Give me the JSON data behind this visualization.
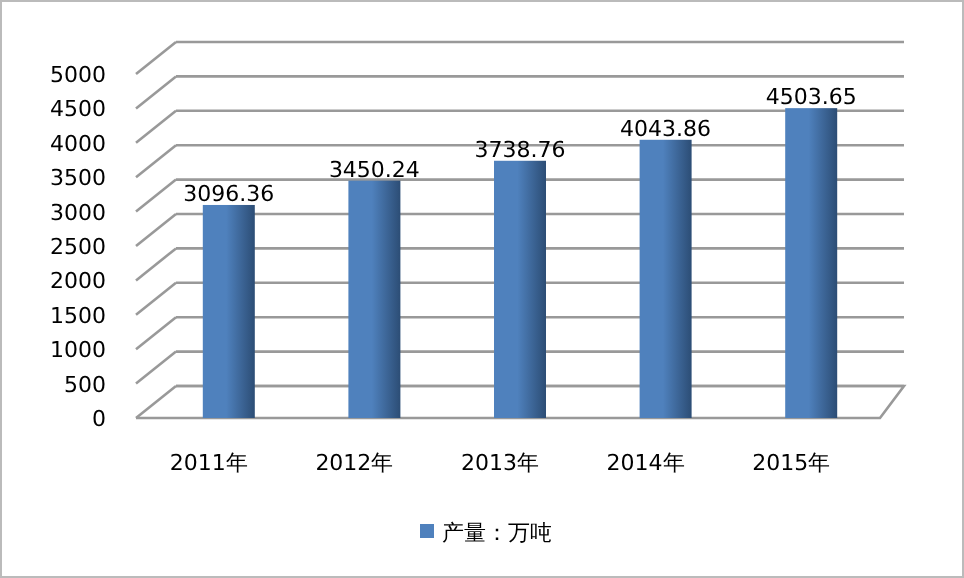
{
  "chart_data": {
    "type": "bar",
    "categories": [
      "2011年",
      "2012年",
      "2013年",
      "2014年",
      "2015年"
    ],
    "series": [
      {
        "name": "产量：万吨",
        "color": "#4f81bd",
        "values": [
          3096.36,
          3450.24,
          3738.76,
          4043.86,
          4503.65
        ]
      }
    ],
    "ylim": [
      0,
      5000
    ],
    "yticks": [
      0,
      500,
      1000,
      1500,
      2000,
      2500,
      3000,
      3500,
      4000,
      4500,
      5000
    ],
    "grid": "y",
    "data_labels": true,
    "legend": "bottom"
  }
}
